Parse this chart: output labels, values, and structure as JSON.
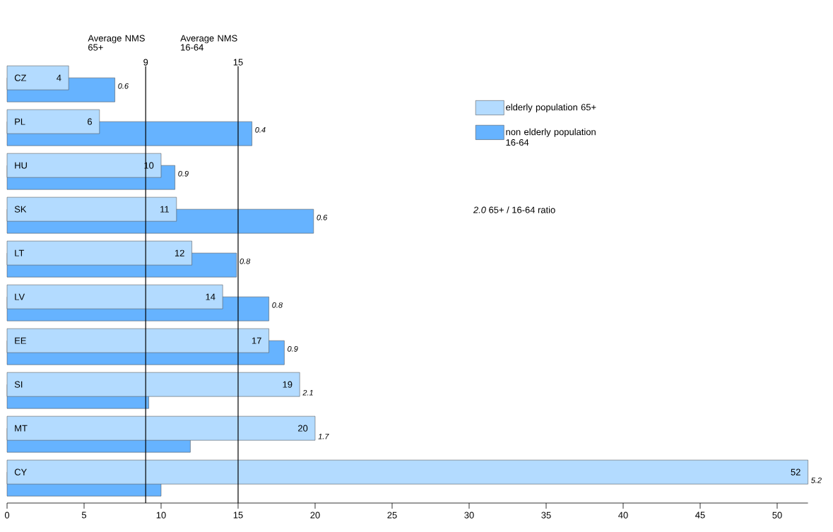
{
  "chart_data": {
    "type": "bar",
    "orientation": "horizontal",
    "categories": [
      "CZ",
      "PL",
      "HU",
      "SK",
      "LT",
      "LV",
      "EE",
      "SI",
      "MT",
      "CY"
    ],
    "series": [
      {
        "name": "elderly population 65+",
        "color": "#b3dbff",
        "values": [
          4,
          6,
          10,
          11,
          12,
          14,
          17,
          19,
          20,
          52
        ],
        "value_labels": [
          "4",
          "6",
          "10",
          "11",
          "12",
          "14",
          "17",
          "19",
          "20",
          "52"
        ]
      },
      {
        "name": "non elderly population 16-64",
        "color": "#66b3ff",
        "values": [
          7.0,
          15.9,
          10.9,
          19.9,
          14.9,
          17.0,
          18.0,
          9.2,
          11.9,
          10.0
        ]
      }
    ],
    "xlim": [
      0,
      52
    ],
    "xticks": [
      0,
      5,
      10,
      15,
      20,
      25,
      30,
      35,
      40,
      45,
      50
    ],
    "ref_lines": [
      {
        "axis": "x",
        "value": 9,
        "label": "Average NMS 65+"
      },
      {
        "axis": "x",
        "value": 15,
        "label": "Average NMS 16-64"
      }
    ],
    "annotations": [
      "9",
      "15",
      "0.6",
      "0.4",
      "0.9",
      "0.6",
      "0.8",
      "0.8",
      "0.9",
      "2.1",
      "1.7",
      "5.2",
      "*2.0* 65+ / 16-64 ratio"
    ],
    "legend": "top right",
    "grid": false
  }
}
